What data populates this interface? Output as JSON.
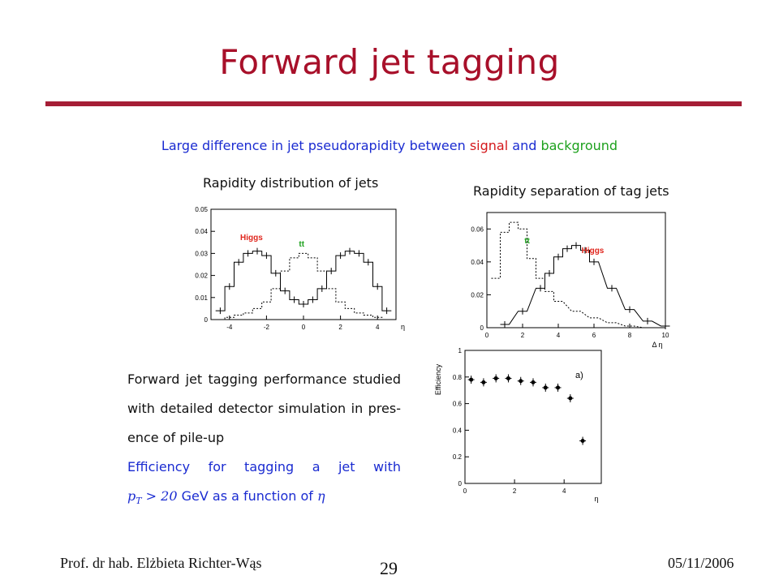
{
  "slide": {
    "title": "Forward jet tagging",
    "subtitle": {
      "part1": "Large difference in jet pseudorapidity between ",
      "signal": "signal",
      "part2": " and ",
      "background": "background"
    },
    "accent_color": "#a51e36"
  },
  "plots": {
    "rapidity": {
      "title": "Rapidity distribution of jets",
      "label_higgs": "Higgs",
      "label_tt": "tt",
      "xlabel": "η",
      "x_ticks": [
        "-4",
        "-2",
        "0",
        "2",
        "4"
      ],
      "y_ticks": [
        "0",
        "0.01",
        "0.02",
        "0.03",
        "0.04",
        "0.05"
      ]
    },
    "separation": {
      "title": "Rapidity separation of tag jets",
      "label_higgs": "Higgs",
      "label_tt": "tt",
      "xlabel": "Δ η",
      "x_ticks": [
        "0",
        "2",
        "4",
        "6",
        "8",
        "10"
      ],
      "y_ticks": [
        "0",
        "0.02",
        "0.04",
        "0.06"
      ]
    },
    "efficiency": {
      "ylabel": "Efficiency",
      "annotation": "a)",
      "xlabel": "η",
      "x_ticks": [
        "0",
        "2",
        "4"
      ],
      "y_ticks": [
        "0",
        "0.2",
        "0.4",
        "0.6",
        "0.8",
        "1"
      ]
    }
  },
  "chart_data": [
    {
      "type": "line",
      "title": "Rapidity distribution of jets",
      "xlabel": "η",
      "xlim": [
        -5,
        5
      ],
      "ylim": [
        0,
        0.05
      ],
      "series": [
        {
          "name": "Higgs",
          "x": [
            -4.5,
            -4,
            -3.5,
            -3,
            -2.5,
            -2,
            -1.5,
            -1,
            -0.5,
            0,
            0.5,
            1,
            1.5,
            2,
            2.5,
            3,
            3.5,
            4,
            4.5
          ],
          "values": [
            0.004,
            0.015,
            0.026,
            0.03,
            0.031,
            0.029,
            0.021,
            0.013,
            0.009,
            0.007,
            0.009,
            0.014,
            0.022,
            0.029,
            0.031,
            0.03,
            0.026,
            0.015,
            0.004
          ]
        },
        {
          "name": "tt",
          "x": [
            -4.5,
            -4,
            -3.5,
            -3,
            -2.5,
            -2,
            -1.5,
            -1,
            -0.5,
            0,
            0.5,
            1,
            1.5,
            2,
            2.5,
            3,
            3.5,
            4,
            4.5
          ],
          "values": [
            0,
            0.001,
            0.002,
            0.003,
            0.005,
            0.008,
            0.014,
            0.022,
            0.028,
            0.03,
            0.028,
            0.022,
            0.014,
            0.008,
            0.005,
            0.003,
            0.002,
            0.001,
            0
          ]
        }
      ]
    },
    {
      "type": "line",
      "title": "Rapidity separation of tag jets",
      "xlabel": "Δ η",
      "xlim": [
        0,
        10
      ],
      "ylim": [
        0,
        0.07
      ],
      "series": [
        {
          "name": "tt",
          "x": [
            0.5,
            1,
            1.5,
            2,
            2.5,
            3,
            3.5,
            4,
            5,
            6,
            7,
            8,
            9
          ],
          "values": [
            0.03,
            0.058,
            0.064,
            0.06,
            0.042,
            0.03,
            0.022,
            0.016,
            0.01,
            0.006,
            0.003,
            0.001,
            0
          ]
        },
        {
          "name": "Higgs",
          "x": [
            1,
            2,
            3,
            3.5,
            4,
            4.5,
            5,
            5.5,
            6,
            7,
            8,
            9,
            10
          ],
          "values": [
            0.002,
            0.01,
            0.024,
            0.033,
            0.043,
            0.048,
            0.05,
            0.047,
            0.04,
            0.024,
            0.011,
            0.004,
            0.001
          ]
        }
      ]
    },
    {
      "type": "scatter",
      "xlabel": "η",
      "ylabel": "Efficiency",
      "xlim": [
        0,
        5.5
      ],
      "ylim": [
        0,
        1
      ],
      "series": [
        {
          "x": [
            0.25,
            0.75,
            1.25,
            1.75,
            2.25,
            2.75,
            3.25,
            3.75,
            4.25,
            4.75
          ],
          "values": [
            0.78,
            0.76,
            0.79,
            0.79,
            0.77,
            0.76,
            0.72,
            0.72,
            0.64,
            0.32
          ]
        }
      ]
    }
  ],
  "body": {
    "para1_lines": [
      "Forward jet tagging performance studied",
      "with detailed detector simulation in pres-",
      "ence of pile-up"
    ],
    "para2_line1": "Efficiency for tagging a jet with",
    "para2_math": "p",
    "para2_math_sub": "T",
    "para2_math_rest": " > 20",
    "para2_tail": " GeV as a function of ",
    "para2_eta": "η"
  },
  "footer": {
    "author": "Prof. dr hab. Elżbieta Richter-Wąs",
    "page": "29",
    "date": "05/11/2006"
  }
}
